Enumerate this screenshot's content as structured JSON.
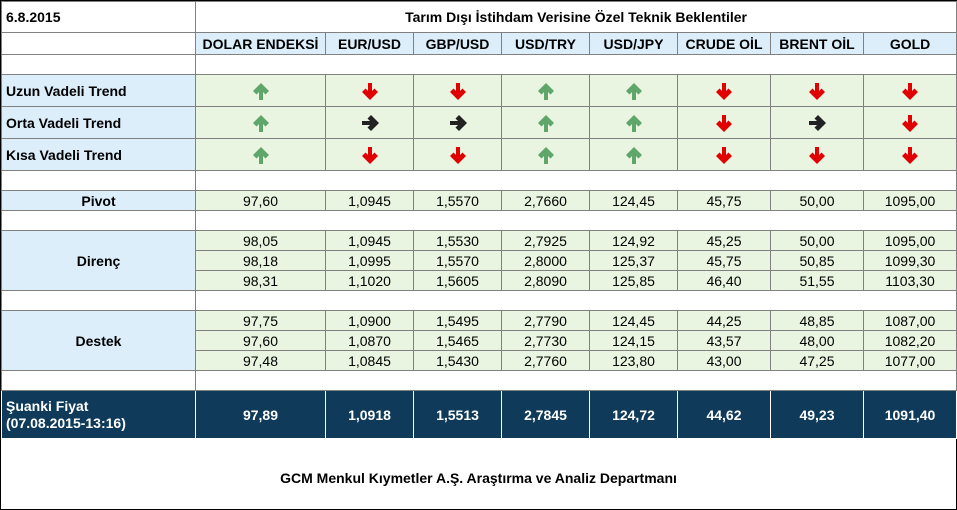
{
  "header": {
    "date": "6.8.2015",
    "title": "Tarım Dışı İstihdam Verisine Özel Teknik Beklentiler"
  },
  "columns": [
    "DOLAR ENDEKSİ",
    "EUR/USD",
    "GBP/USD",
    "USD/TRY",
    "USD/JPY",
    "CRUDE OİL",
    "BRENT OİL",
    "GOLD"
  ],
  "trends": [
    {
      "label": "Uzun Vadeli Trend",
      "arrows": [
        "up",
        "down",
        "down",
        "up",
        "up",
        "down",
        "down",
        "down"
      ]
    },
    {
      "label": "Orta Vadeli Trend",
      "arrows": [
        "up",
        "right",
        "right",
        "up",
        "up",
        "down",
        "right",
        "down"
      ]
    },
    {
      "label": "Kısa Vadeli Trend",
      "arrows": [
        "up",
        "down",
        "down",
        "up",
        "up",
        "down",
        "down",
        "down"
      ]
    }
  ],
  "pivot": {
    "label": "Pivot",
    "values": [
      "97,60",
      "1,0945",
      "1,5570",
      "2,7660",
      "124,45",
      "45,75",
      "50,00",
      "1095,00"
    ]
  },
  "resistance": {
    "label": "Direnç",
    "rows": [
      [
        "98,05",
        "1,0945",
        "1,5530",
        "2,7925",
        "124,92",
        "45,25",
        "50,00",
        "1095,00"
      ],
      [
        "98,18",
        "1,0995",
        "1,5570",
        "2,8000",
        "125,37",
        "45,75",
        "50,85",
        "1099,30"
      ],
      [
        "98,31",
        "1,1020",
        "1,5605",
        "2,8090",
        "125,85",
        "46,40",
        "51,55",
        "1103,30"
      ]
    ]
  },
  "support": {
    "label": "Destek",
    "rows": [
      [
        "97,75",
        "1,0900",
        "1,5495",
        "2,7790",
        "124,45",
        "44,25",
        "48,85",
        "1087,00"
      ],
      [
        "97,60",
        "1,0870",
        "1,5465",
        "2,7730",
        "124,15",
        "43,57",
        "48,00",
        "1082,20"
      ],
      [
        "97,48",
        "1,0845",
        "1,5430",
        "2,7760",
        "123,80",
        "43,00",
        "47,25",
        "1077,00"
      ]
    ]
  },
  "current_price": {
    "label": "Şuanki Fiyat",
    "timestamp": "(07.08.2015-13:16)",
    "values": [
      "97,89",
      "1,0918",
      "1,5513",
      "2,7845",
      "124,72",
      "44,62",
      "49,23",
      "1091,40"
    ]
  },
  "footer": "GCM Menkul Kıymetler A.Ş. Araştırma ve Analiz Departmanı",
  "colors": {
    "up": "#5fa66a",
    "down": "#e00000",
    "right": "#222222",
    "price_bg": "#0f3a5a"
  }
}
